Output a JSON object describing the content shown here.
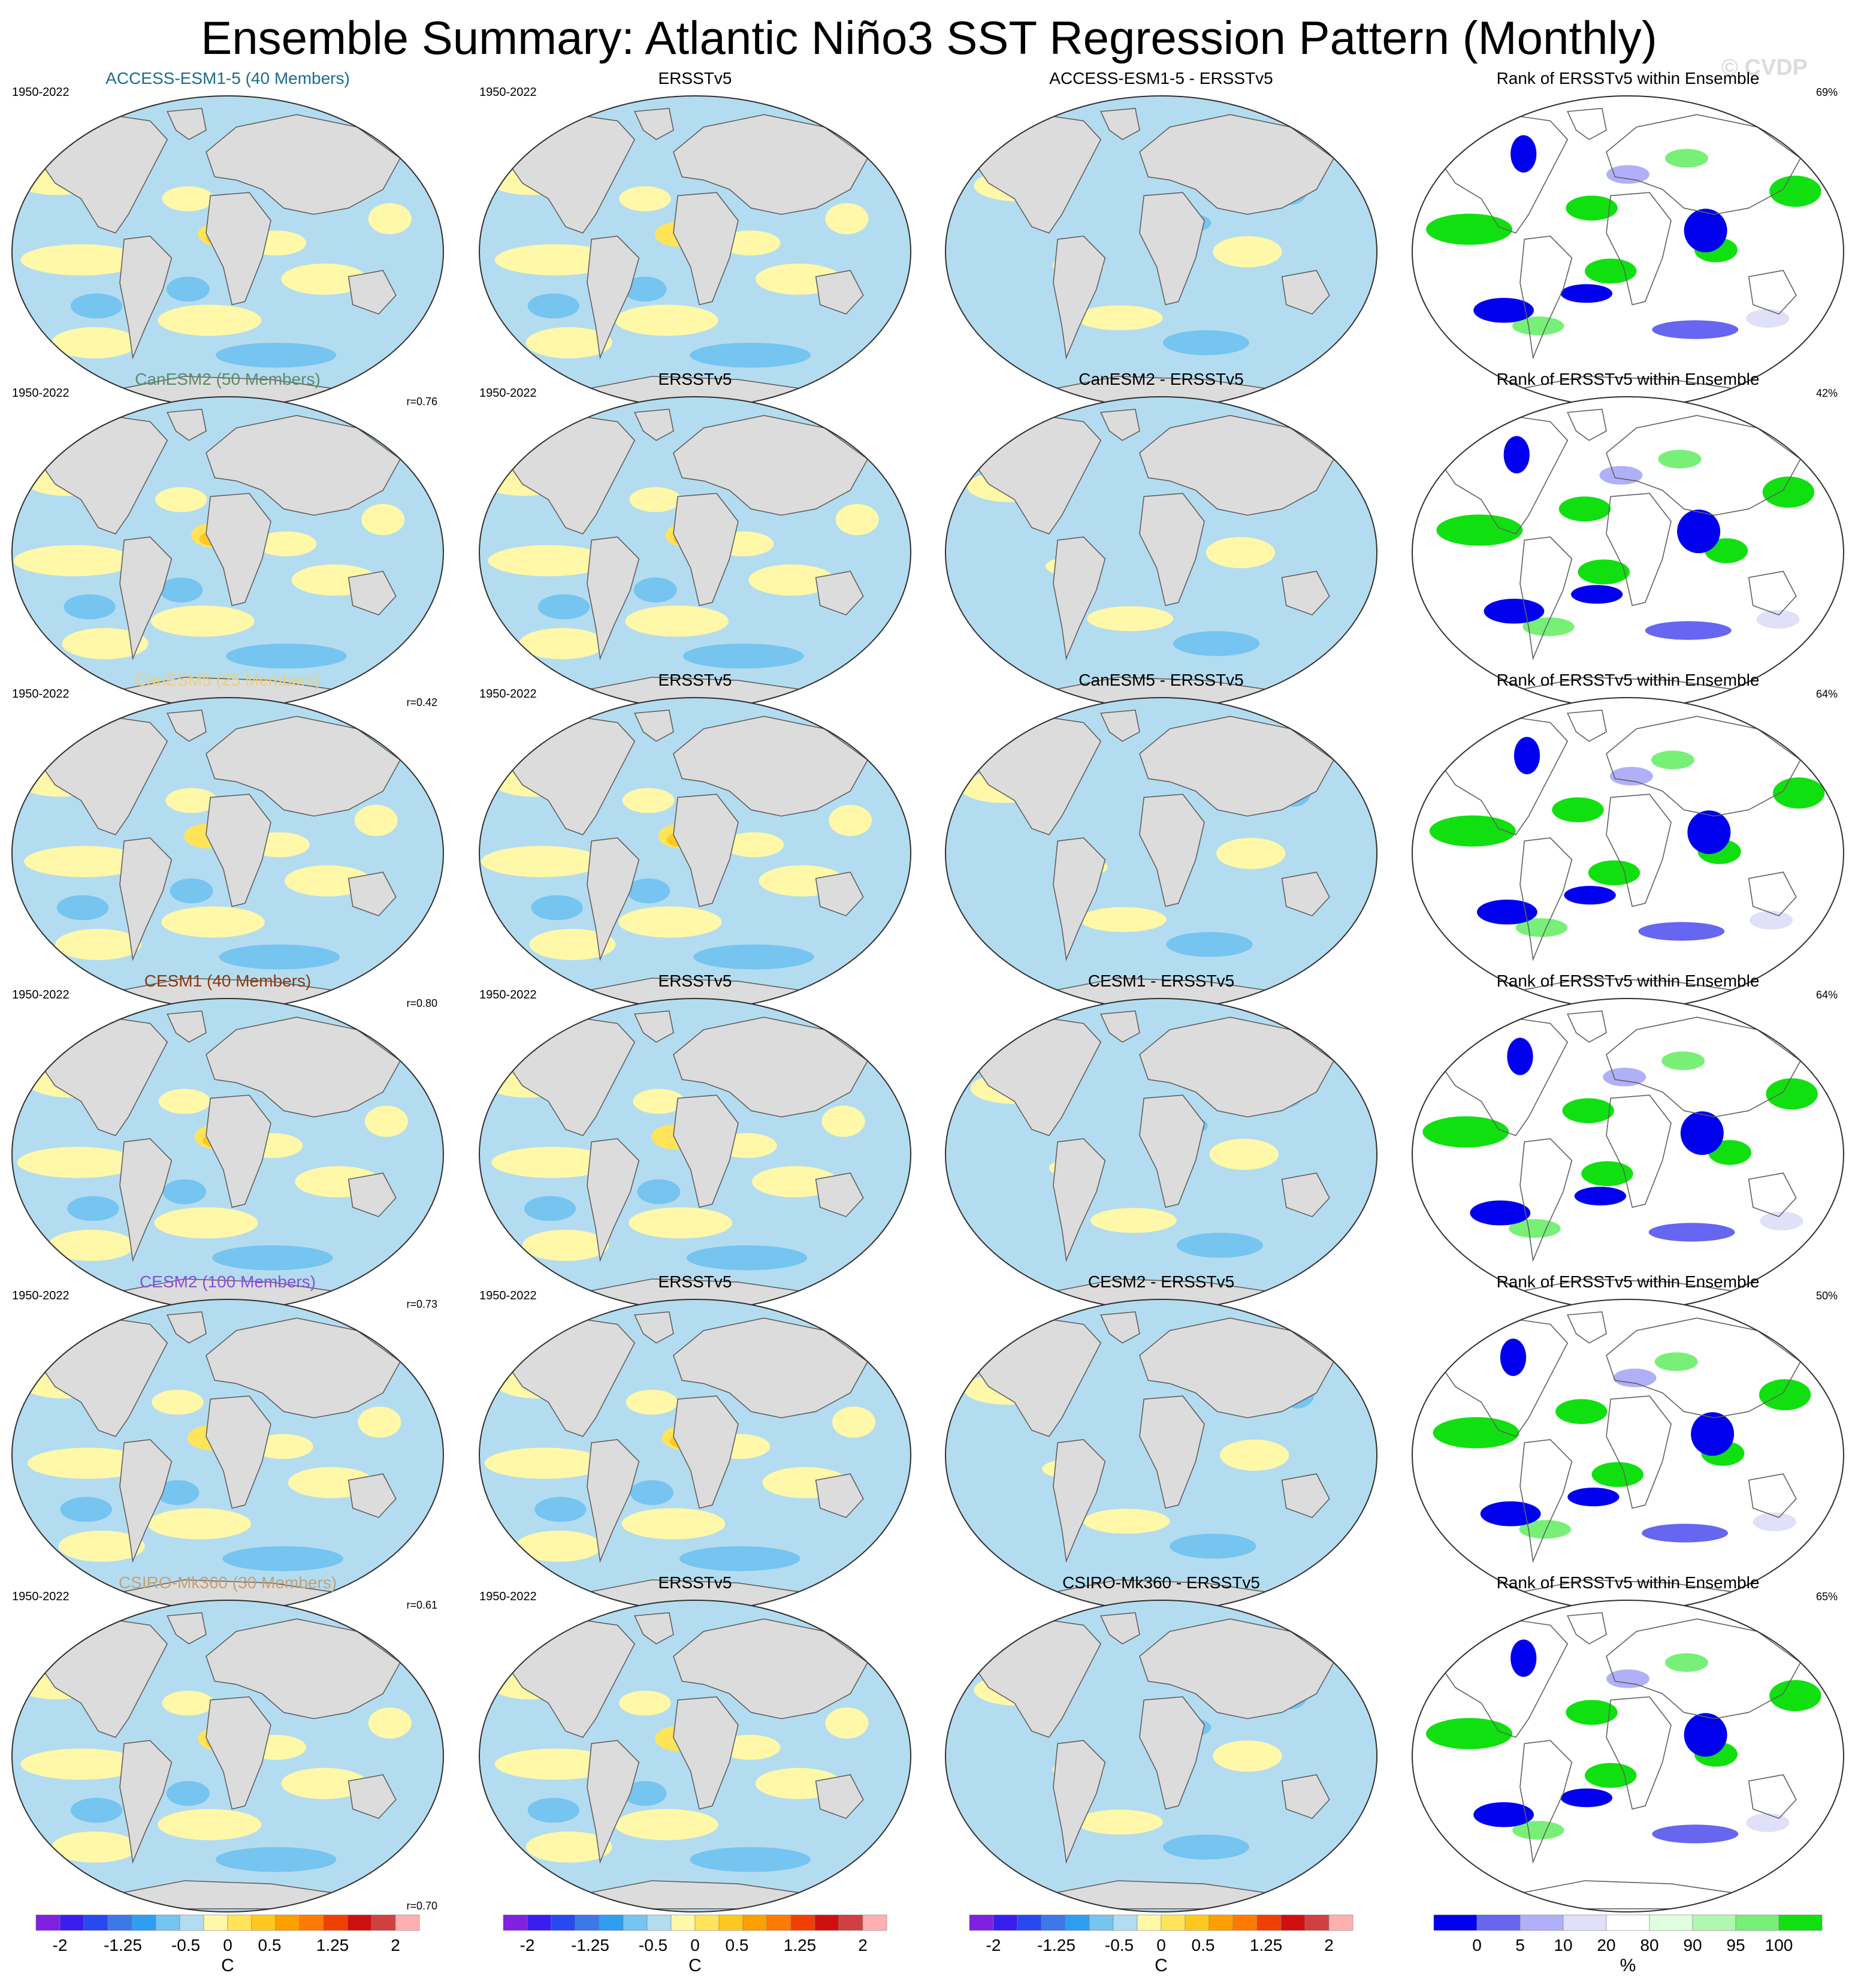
{
  "title": "Ensemble Summary: Atlantic Niño3 SST Regression Pattern (Monthly)",
  "watermark": "© CVDP",
  "colors": {
    "land": "#dcdcdc",
    "sst_levels": [
      "#8020e0",
      "#3a1ef0",
      "#2848f0",
      "#3c78e8",
      "#2e9ef0",
      "#76c4f0",
      "#b4dcf0",
      "#fff8a8",
      "#ffe45a",
      "#ffc820",
      "#ffa000",
      "#ff7a00",
      "#f04000",
      "#d01010",
      "#d04040",
      "#ffb0b0"
    ],
    "rank_levels": [
      "#0000ee",
      "#6666f0",
      "#b0b0f8",
      "#e0e0f8",
      "#ffffff",
      "#e0ffe0",
      "#b0f8b0",
      "#78f078",
      "#10e010"
    ]
  },
  "chart_data": {
    "type": "map",
    "period": "1950-2022",
    "observation": "ERSSTv5",
    "rank_title": "Rank of ERSSTv5 within Ensemble",
    "rows": [
      {
        "model": "ACCESS-ESM1-5 (40 Members)",
        "model_color": "#1a6e8a",
        "diff_title": "ACCESS-ESM1-5 - ERSSTv5",
        "r": "r=0.76",
        "rank_pct": "69%"
      },
      {
        "model": "CanESM2 (50 Members)",
        "model_color": "#5e8a6a",
        "diff_title": "CanESM2 - ERSSTv5",
        "r": "r=0.42",
        "rank_pct": "42%"
      },
      {
        "model": "CanESM5 (25 Members)",
        "model_color": "#e8d080",
        "diff_title": "CanESM5 - ERSSTv5",
        "r": "r=0.80",
        "rank_pct": "64%"
      },
      {
        "model": "CESM1 (40 Members)",
        "model_color": "#8a3a10",
        "diff_title": "CESM1 - ERSSTv5",
        "r": "r=0.73",
        "rank_pct": "64%"
      },
      {
        "model": "CESM2 (100 Members)",
        "model_color": "#8a50d8",
        "diff_title": "CESM2 - ERSSTv5",
        "r": "r=0.61",
        "rank_pct": "50%"
      },
      {
        "model": "CSIRO-Mk360 (30 Members)",
        "model_color": "#c8a070",
        "diff_title": "CSIRO-Mk360 - ERSSTv5",
        "r": "r=0.70",
        "rank_pct": "65%"
      }
    ],
    "sst_colorbar": {
      "unit": "C",
      "tick_labels": [
        "-2",
        "-1.25",
        "-0.5",
        "0",
        "0.5",
        "1.25",
        "2"
      ],
      "range": [
        -2,
        2
      ]
    },
    "rank_colorbar": {
      "unit": "%",
      "tick_labels": [
        "0",
        "5",
        "10",
        "20",
        "80",
        "90",
        "95",
        "100"
      ]
    }
  }
}
